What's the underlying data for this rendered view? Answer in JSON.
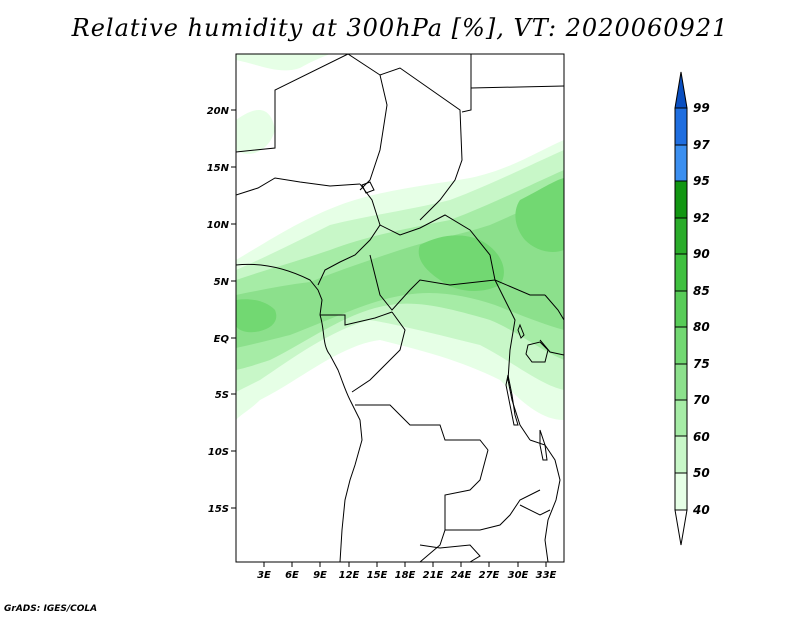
{
  "title": "Relative humidity at 300hPa [%], VT: 2020060921",
  "credit": "GrADS: IGES/COLA",
  "map": {
    "lat_labels": [
      "20N",
      "15N",
      "10N",
      "5N",
      "EQ",
      "5S",
      "10S",
      "15S"
    ],
    "lon_labels": [
      "3E",
      "6E",
      "9E",
      "12E",
      "15E",
      "18E",
      "21E",
      "24E",
      "27E",
      "30E",
      "33E"
    ]
  },
  "legend": {
    "labels": [
      "40",
      "50",
      "60",
      "70",
      "75",
      "80",
      "85",
      "90",
      "92",
      "95",
      "97",
      "99"
    ],
    "colors": [
      "#e6ffe6",
      "#c8f7c8",
      "#a6eca6",
      "#8ce08c",
      "#72d872",
      "#58cc58",
      "#3fc03f",
      "#2aac2a",
      "#129612",
      "#3b8ff0",
      "#1f6ee0",
      "#0a4fc0"
    ]
  }
}
